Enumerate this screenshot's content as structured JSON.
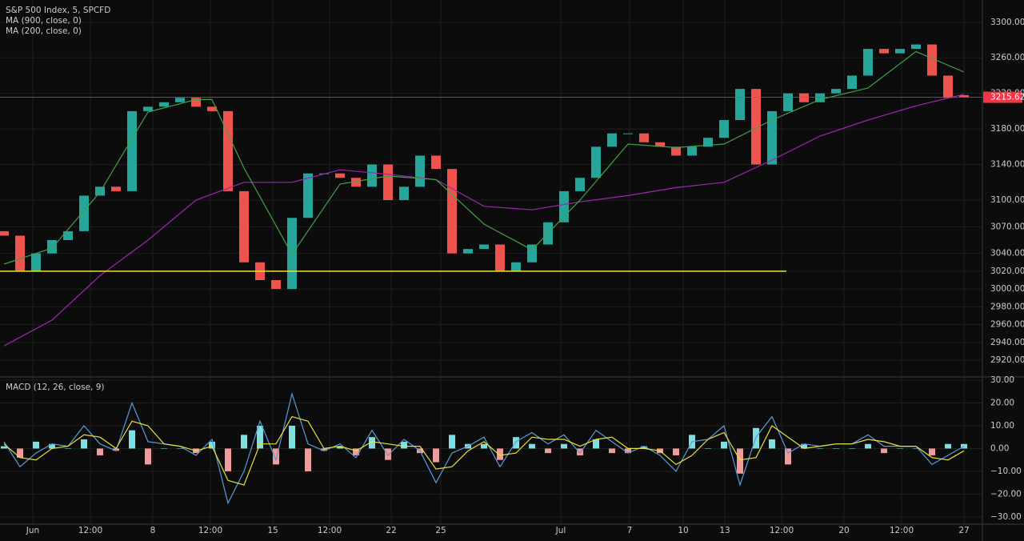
{
  "chart_data": [
    {
      "type": "candlestick",
      "title": "S&P 500 Index, 5, SPCFD",
      "up_color": "#26a69a",
      "down_color": "#ef5350",
      "open": [
        3065,
        3060,
        3020,
        3040,
        3055,
        3065,
        3105,
        3115,
        3110,
        3200,
        3205,
        3210,
        3215,
        3205,
        3200,
        3110,
        3030,
        3010,
        3000,
        3080,
        3130,
        3130,
        3125,
        3115,
        3140,
        3100,
        3115,
        3150,
        3135,
        3040,
        3045,
        3050,
        3020,
        3030,
        3050,
        3075,
        3110,
        3125,
        3160,
        3175,
        3175,
        3165,
        3160,
        3150,
        3160,
        3170,
        3190,
        3225,
        3140,
        3200,
        3220,
        3210,
        3220,
        3225,
        3240,
        3270,
        3265,
        3270,
        3275,
        3240,
        3218
      ],
      "close": [
        3060,
        3020,
        3040,
        3055,
        3065,
        3105,
        3115,
        3110,
        3200,
        3205,
        3210,
        3215,
        3205,
        3200,
        3110,
        3030,
        3010,
        3000,
        3080,
        3130,
        3130,
        3125,
        3115,
        3140,
        3100,
        3115,
        3150,
        3135,
        3040,
        3045,
        3050,
        3020,
        3030,
        3050,
        3075,
        3110,
        3125,
        3160,
        3175,
        3175,
        3165,
        3160,
        3150,
        3160,
        3170,
        3190,
        3225,
        3140,
        3200,
        3220,
        3210,
        3220,
        3225,
        3240,
        3270,
        3265,
        3270,
        3275,
        3240,
        3215,
        3215.62
      ],
      "series": [
        {
          "name": "MA (900, close, 0)",
          "color": "#9c27b0",
          "x": [
            0,
            3,
            6,
            9,
            12,
            15,
            18,
            21,
            24,
            27,
            30,
            33,
            36,
            39,
            42,
            45,
            48,
            51,
            54,
            57,
            60
          ],
          "values": [
            2936,
            2965,
            3015,
            3055,
            3100,
            3120,
            3120,
            3134,
            3129,
            3123,
            3093,
            3089,
            3098,
            3105,
            3114,
            3120,
            3145,
            3172,
            3190,
            3206,
            3219
          ]
        },
        {
          "name": "MA (200, close, 0)",
          "color": "#43a047",
          "x": [
            0,
            3,
            6,
            9,
            12,
            13,
            15,
            18,
            21,
            24,
            27,
            30,
            33,
            36,
            39,
            42,
            45,
            48,
            51,
            54,
            57,
            60
          ],
          "values": [
            3028,
            3046,
            3109,
            3199,
            3213,
            3213,
            3136,
            3039,
            3118,
            3127,
            3123,
            3073,
            3044,
            3100,
            3163,
            3159,
            3163,
            3190,
            3213,
            3226,
            3267,
            3244
          ]
        }
      ],
      "last_price": 3215.62,
      "last_price_color": "#f23645",
      "hline": {
        "value": 3020,
        "x_end": 48.9,
        "color": "#e8e03a"
      },
      "xlim": [
        -0.25,
        61.15
      ],
      "xticks": [
        {
          "value": 1.8,
          "label": "Jun"
        },
        {
          "value": 5.4,
          "label": "12:00"
        },
        {
          "value": 9.3,
          "label": "8"
        },
        {
          "value": 12.9,
          "label": "12:00"
        },
        {
          "value": 16.8,
          "label": "15"
        },
        {
          "value": 20.35,
          "label": "12:00"
        },
        {
          "value": 24.2,
          "label": "22"
        },
        {
          "value": 27.3,
          "label": "25"
        },
        {
          "value": 34.8,
          "label": "Jul"
        },
        {
          "value": 39.1,
          "label": "7"
        },
        {
          "value": 42.45,
          "label": "10"
        },
        {
          "value": 45.05,
          "label": "13"
        },
        {
          "value": 48.6,
          "label": "12:00"
        },
        {
          "value": 52.5,
          "label": "20"
        },
        {
          "value": 56.1,
          "label": "12:00"
        },
        {
          "value": 60,
          "label": "27"
        }
      ],
      "ylim": [
        2902,
        3325
      ],
      "yticks": [
        {
          "value": 3300,
          "label": "3300.00"
        },
        {
          "value": 3260,
          "label": "3260.00"
        },
        {
          "value": 3220,
          "label": "3220.00"
        },
        {
          "value": 3180,
          "label": "3180.00"
        },
        {
          "value": 3140,
          "label": "3140.00"
        },
        {
          "value": 3100,
          "label": "3100.00"
        },
        {
          "value": 3070,
          "label": "3070.00"
        },
        {
          "value": 3040,
          "label": "3040.00"
        },
        {
          "value": 3020,
          "label": "3020.00"
        },
        {
          "value": 3000,
          "label": "3000.00"
        },
        {
          "value": 2980,
          "label": "2980.00"
        },
        {
          "value": 2960,
          "label": "2960.00"
        },
        {
          "value": 2940,
          "label": "2940.00"
        },
        {
          "value": 2920,
          "label": "2920.00"
        }
      ],
      "grid": true
    },
    {
      "type": "macd",
      "title": "MACD (12, 26, close, 9)",
      "xlim": [
        -0.25,
        61.15
      ],
      "ylim": [
        -33.2,
        31.05
      ],
      "yticks": [
        {
          "value": 30,
          "label": "30.00"
        },
        {
          "value": 20,
          "label": "20.00"
        },
        {
          "value": 10,
          "label": "10.00"
        },
        {
          "value": 0,
          "label": "0.00"
        },
        {
          "value": -10,
          "label": "−10.00"
        },
        {
          "value": -20,
          "label": "−20.00"
        },
        {
          "value": -30,
          "label": "−30.00"
        }
      ],
      "histogram": {
        "up_color": "#7fdfe0",
        "down_color": "#f19b9b",
        "values": [
          1,
          -4,
          3,
          2,
          0,
          4,
          -3,
          -1,
          8,
          -7,
          0,
          0,
          -2,
          3,
          -10,
          6,
          10,
          -7,
          10,
          -10,
          -1,
          1,
          -3,
          5,
          -5,
          3,
          -2,
          -6,
          6,
          2,
          2,
          -5,
          5,
          2,
          -2,
          2,
          -3,
          4,
          -2,
          -2,
          1,
          -2,
          -3,
          6,
          0,
          3,
          -11,
          9,
          4,
          -7,
          2,
          0,
          0,
          0,
          2,
          -2,
          0,
          0,
          -3,
          2,
          2
        ]
      },
      "macd": {
        "color": "#5b9bd5",
        "values": [
          3,
          -8,
          -2,
          2,
          1,
          10,
          2,
          -1,
          20,
          3,
          2,
          1,
          -3,
          4,
          -24,
          -10,
          12,
          -5,
          24,
          2,
          -1,
          2,
          -4,
          8,
          -3,
          4,
          -1,
          -15,
          -2,
          1,
          5,
          -8,
          3,
          7,
          2,
          6,
          -2,
          8,
          3,
          -2,
          1,
          -3,
          -10,
          3,
          4,
          10,
          -16,
          5,
          14,
          -2,
          2,
          1,
          2,
          2,
          6,
          1,
          1,
          1,
          -7,
          -3,
          1
        ]
      },
      "signal": {
        "color": "#e8e03a",
        "values": [
          2,
          -4,
          -5,
          0,
          1,
          6,
          5,
          0,
          12,
          10,
          2,
          1,
          -1,
          1,
          -14,
          -16,
          2,
          2,
          14,
          12,
          0,
          1,
          -1,
          3,
          2,
          1,
          1,
          -9,
          -8,
          -1,
          3,
          -3,
          -2,
          5,
          4,
          4,
          1,
          4,
          5,
          0,
          0,
          -1,
          -7,
          -3,
          4,
          7,
          -5,
          -4,
          10,
          5,
          0,
          1,
          2,
          2,
          4,
          3,
          1,
          1,
          -4,
          -5,
          -1
        ]
      },
      "grid": true
    }
  ]
}
